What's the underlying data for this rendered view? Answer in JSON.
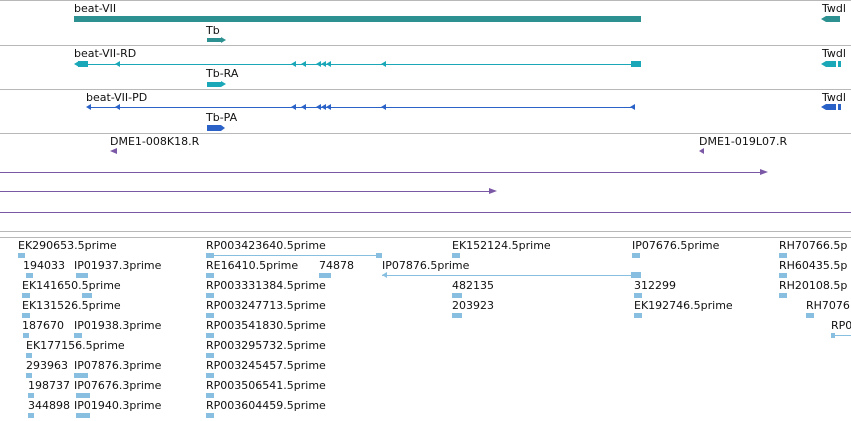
{
  "colors": {
    "gene_dark": "#2e9191",
    "gene_teal": "#1aa7b8",
    "gene_blue": "#2b62c8",
    "bac_purple": "#7b58a6",
    "est_light": "#88bfe0"
  },
  "gene_track": {
    "main_label": "beat-VII",
    "sub_label": "Tb",
    "right_label": "Twdl"
  },
  "rd_track": {
    "main_label": "beat-VII-RD",
    "sub_label": "Tb-RA",
    "right_label": "Twdl"
  },
  "pd_track": {
    "main_label": "beat-VII-PD",
    "sub_label": "Tb-PA",
    "right_label": "Twdl"
  },
  "bac_track": {
    "labels": [
      "DME1-008K18.R",
      "DME1-019L07.R"
    ]
  },
  "est_track": {
    "labels": [
      "EK290653.5prime",
      "194033",
      "IP01937.3prime",
      "EK141650.5prime",
      "EK131526.5prime",
      "187670",
      "IP01938.3prime",
      "EK177156.5prime",
      "293963",
      "IP07876.3prime",
      "198737",
      "IP07676.3prime",
      "344898",
      "IP01940.3prime",
      "RP003423640.5prime",
      "RE16410.5prime",
      "74878",
      "RP003331384.5prime",
      "RP003247713.5prime",
      "RP003541830.5prime",
      "RP003295732.5prime",
      "RP003245457.5prime",
      "RP003506541.5prime",
      "RP003604459.5prime",
      "EK152124.5prime",
      "IP07876.5prime",
      "482135",
      "203923",
      "IP07676.5prime",
      "312299",
      "EK192746.5prime",
      "RH70766.5p",
      "RH60435.5p",
      "RH20108.5p",
      "RH7076",
      "RP0"
    ]
  }
}
